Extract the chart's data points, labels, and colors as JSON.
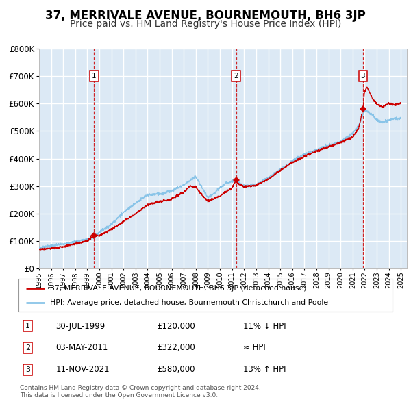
{
  "title": "37, MERRIVALE AVENUE, BOURNEMOUTH, BH6 3JP",
  "subtitle": "Price paid vs. HM Land Registry's House Price Index (HPI)",
  "title_fontsize": 12,
  "subtitle_fontsize": 10,
  "bg_color": "#dce9f5",
  "grid_color": "#ffffff",
  "hpi_color": "#89c4e8",
  "price_color": "#cc0000",
  "sale_marker_color": "#cc0000",
  "ylim": [
    0,
    800000
  ],
  "yticks": [
    0,
    100000,
    200000,
    300000,
    400000,
    500000,
    600000,
    700000,
    800000
  ],
  "sales": [
    {
      "date_x": 1999.57,
      "price": 120000,
      "label": "1"
    },
    {
      "date_x": 2011.33,
      "price": 322000,
      "label": "2"
    },
    {
      "date_x": 2021.86,
      "price": 580000,
      "label": "3"
    }
  ],
  "vline_colors": [
    "#cc0000",
    "#cc0000",
    "#cc0000"
  ],
  "table_rows": [
    {
      "num": "1",
      "date": "30-JUL-1999",
      "price": "£120,000",
      "rel": "11% ↓ HPI"
    },
    {
      "num": "2",
      "date": "03-MAY-2011",
      "price": "£322,000",
      "rel": "≈ HPI"
    },
    {
      "num": "3",
      "date": "11-NOV-2021",
      "price": "£580,000",
      "rel": "13% ↑ HPI"
    }
  ],
  "legend1": "37, MERRIVALE AVENUE, BOURNEMOUTH, BH6 3JP (detached house)",
  "legend2": "HPI: Average price, detached house, Bournemouth Christchurch and Poole",
  "footnote": "Contains HM Land Registry data © Crown copyright and database right 2024.\nThis data is licensed under the Open Government Licence v3.0.",
  "xmin": 1995.0,
  "xmax": 2025.5
}
